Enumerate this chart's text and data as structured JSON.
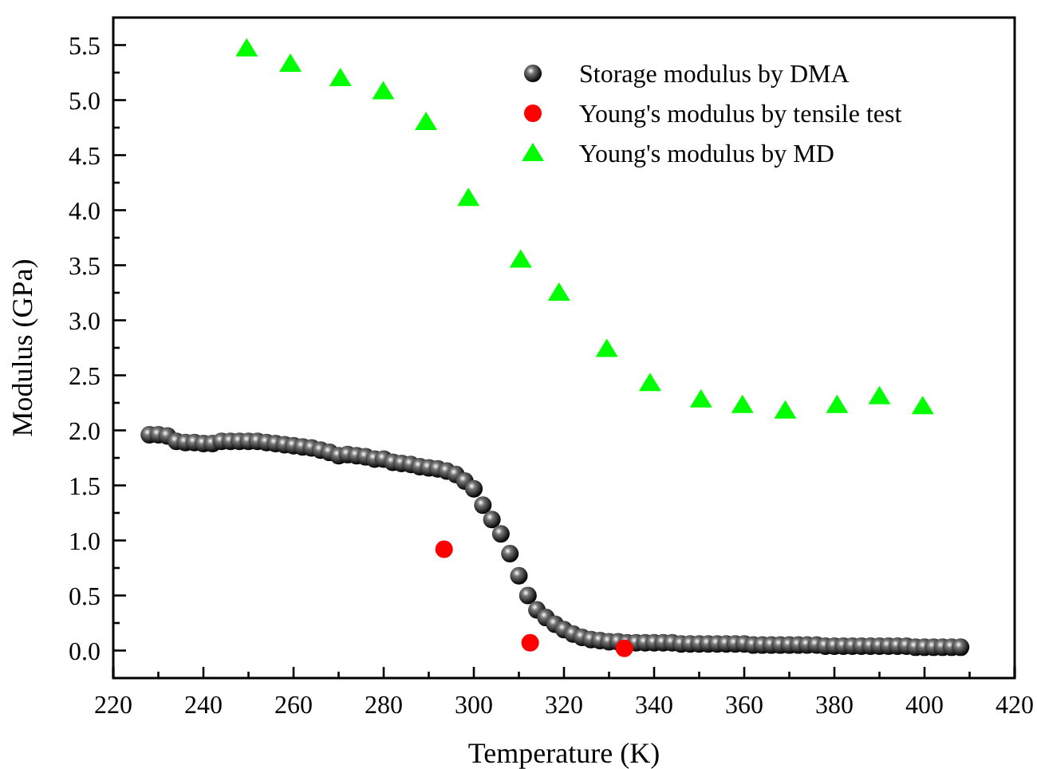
{
  "chart_data": {
    "type": "scatter",
    "xlabel": "Temperature (K)",
    "ylabel": "Modulus (GPa)",
    "xlim": [
      220,
      420
    ],
    "ylim": [
      -0.25,
      5.75
    ],
    "xticks": [
      220,
      {
        "value": 230,
        "label": null
      },
      240,
      {
        "value": 250,
        "label": null
      },
      260,
      {
        "value": 270,
        "label": null
      },
      280,
      {
        "value": 290,
        "label": null
      },
      300,
      {
        "value": 310,
        "label": null
      },
      320,
      {
        "value": 330,
        "label": null
      },
      340,
      {
        "value": 350,
        "label": null
      },
      360,
      {
        "value": 370,
        "label": null
      },
      380,
      {
        "value": 390,
        "label": null
      },
      400,
      {
        "value": 410,
        "label": null
      },
      420
    ],
    "yticks": [
      {
        "value": 0,
        "label": "0.0"
      },
      {
        "value": 0.25,
        "label": null
      },
      {
        "value": 0.5,
        "label": "0.5"
      },
      {
        "value": 0.75,
        "label": null
      },
      {
        "value": 1,
        "label": "1.0"
      },
      {
        "value": 1.25,
        "label": null
      },
      {
        "value": 1.5,
        "label": "1.5"
      },
      {
        "value": 1.75,
        "label": null
      },
      {
        "value": 2,
        "label": "2.0"
      },
      {
        "value": 2.25,
        "label": null
      },
      {
        "value": 2.5,
        "label": "2.5"
      },
      {
        "value": 2.75,
        "label": null
      },
      {
        "value": 3,
        "label": "3.0"
      },
      {
        "value": 3.25,
        "label": null
      },
      {
        "value": 3.5,
        "label": "3.5"
      },
      {
        "value": 3.75,
        "label": null
      },
      {
        "value": 4,
        "label": "4.0"
      },
      {
        "value": 4.25,
        "label": null
      },
      {
        "value": 4.5,
        "label": "4.5"
      },
      {
        "value": 4.75,
        "label": null
      },
      {
        "value": 5,
        "label": "5.0"
      },
      {
        "value": 5.25,
        "label": null
      },
      {
        "value": 5.5,
        "label": "5.5"
      }
    ],
    "grid": false,
    "legend": "top right",
    "series": [
      {
        "name": "Storage modulus by DMA",
        "color": "#000000",
        "marker": "circle",
        "x": [
          228,
          230,
          232,
          234,
          236,
          238,
          240,
          242,
          244,
          246,
          248,
          250,
          252,
          254,
          256,
          258,
          260,
          262,
          264,
          266,
          268,
          270,
          272,
          274,
          276,
          278,
          280,
          282,
          284,
          286,
          288,
          290,
          292,
          294,
          296,
          298,
          300,
          302,
          304,
          306,
          308,
          310,
          312,
          314,
          316,
          318,
          320,
          322,
          324,
          326,
          328,
          330,
          332,
          334,
          336,
          338,
          340,
          342,
          344,
          346,
          348,
          350,
          352,
          354,
          356,
          358,
          360,
          362,
          364,
          366,
          368,
          370,
          372,
          374,
          376,
          378,
          380,
          382,
          384,
          386,
          388,
          390,
          392,
          394,
          396,
          398,
          400,
          402,
          404,
          406,
          408
        ],
        "values": [
          1.96,
          1.96,
          1.95,
          1.9,
          1.89,
          1.89,
          1.88,
          1.88,
          1.9,
          1.9,
          1.9,
          1.9,
          1.9,
          1.89,
          1.88,
          1.87,
          1.86,
          1.85,
          1.84,
          1.82,
          1.8,
          1.77,
          1.78,
          1.77,
          1.76,
          1.74,
          1.74,
          1.71,
          1.7,
          1.69,
          1.67,
          1.66,
          1.65,
          1.63,
          1.6,
          1.54,
          1.47,
          1.32,
          1.19,
          1.06,
          0.88,
          0.68,
          0.5,
          0.37,
          0.3,
          0.24,
          0.19,
          0.15,
          0.12,
          0.1,
          0.09,
          0.08,
          0.08,
          0.07,
          0.07,
          0.07,
          0.07,
          0.07,
          0.07,
          0.06,
          0.06,
          0.06,
          0.06,
          0.06,
          0.06,
          0.06,
          0.06,
          0.05,
          0.05,
          0.05,
          0.05,
          0.05,
          0.05,
          0.05,
          0.05,
          0.04,
          0.04,
          0.04,
          0.04,
          0.04,
          0.04,
          0.04,
          0.04,
          0.04,
          0.04,
          0.03,
          0.03,
          0.03,
          0.03,
          0.03,
          0.03
        ]
      },
      {
        "name": "Young's modulus by tensile test",
        "color": "#ff0000",
        "marker": "circle",
        "x": [
          293.4,
          312.5,
          333.4
        ],
        "values": [
          0.92,
          0.07,
          0.02
        ]
      },
      {
        "name": "Young's modulus by MD",
        "color": "#00ff00",
        "marker": "triangle",
        "x": [
          249.6,
          259.3,
          270.4,
          279.9,
          289.4,
          298.8,
          310.4,
          318.9,
          329.5,
          339.1,
          350.4,
          359.6,
          369.1,
          380.6,
          390,
          399.6
        ],
        "values": [
          5.47,
          5.33,
          5.2,
          5.08,
          4.8,
          4.11,
          3.55,
          3.25,
          2.74,
          2.43,
          2.28,
          2.23,
          2.18,
          2.23,
          2.31,
          2.22
        ]
      }
    ]
  }
}
